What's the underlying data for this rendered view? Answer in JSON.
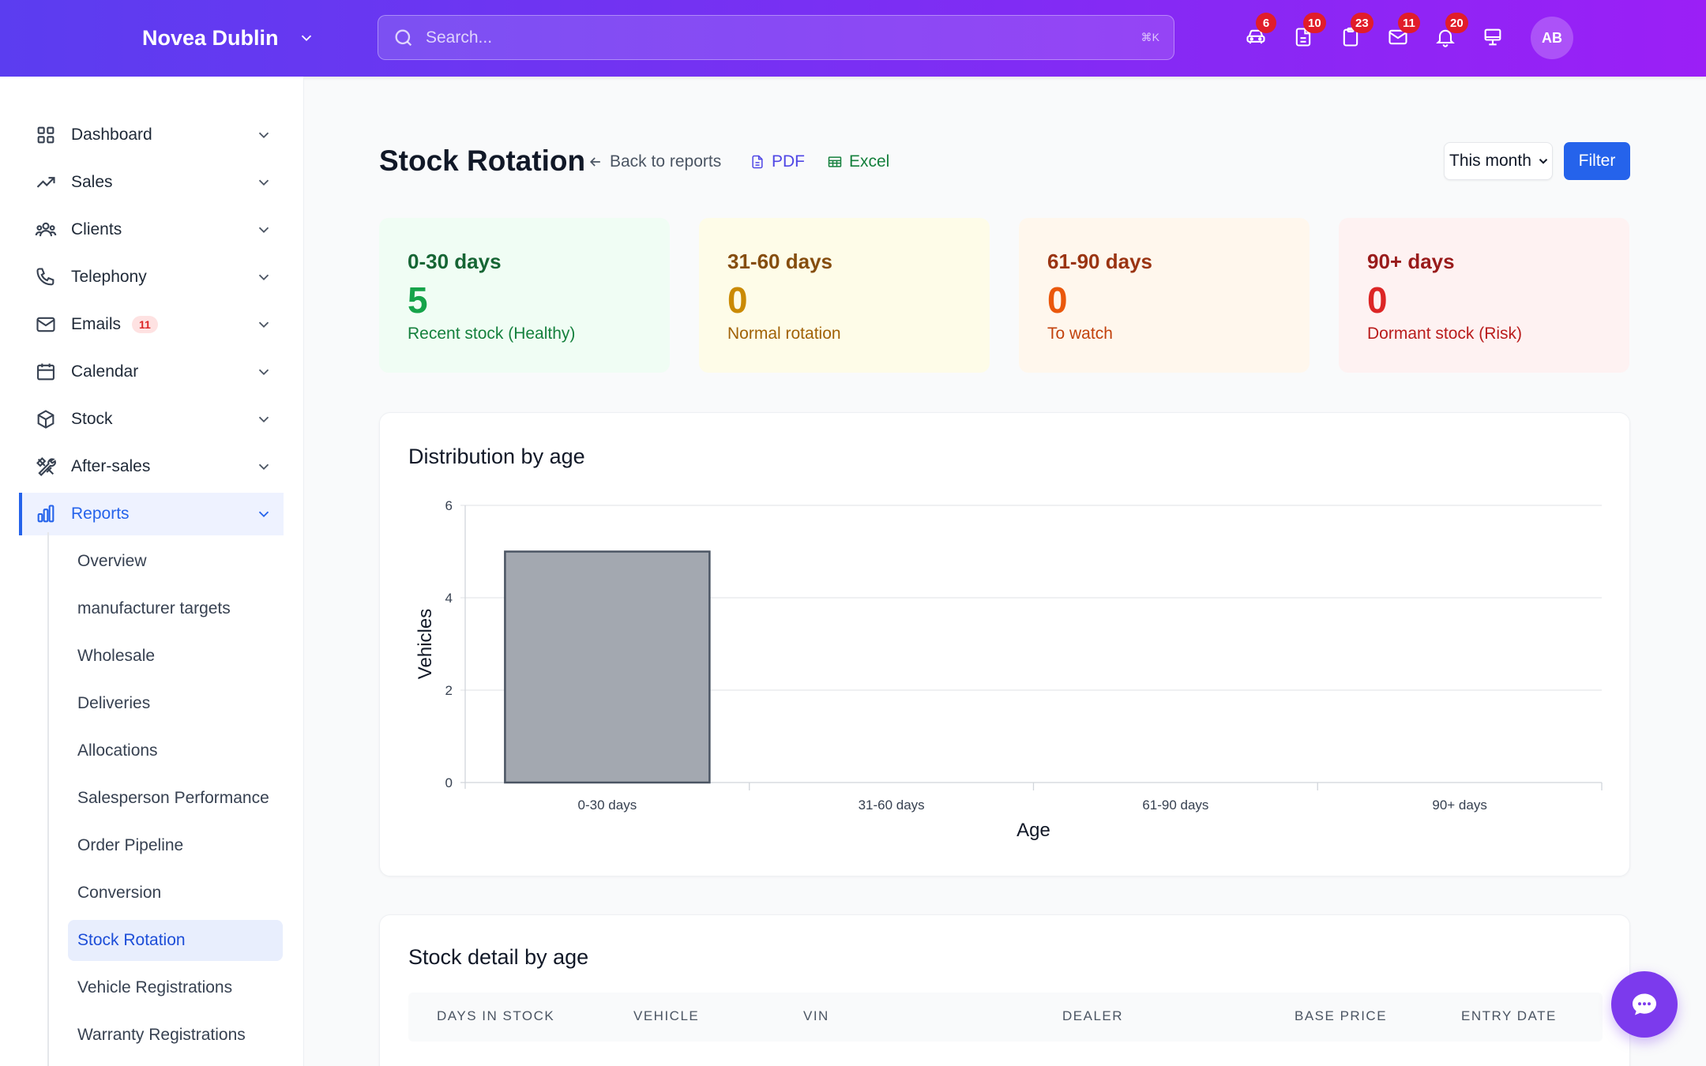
{
  "header": {
    "brand": "Novea Dublin",
    "search_placeholder": "Search...",
    "search_shortcut": "⌘K",
    "icons": [
      {
        "name": "car-icon",
        "badge": "6"
      },
      {
        "name": "document-icon",
        "badge": "10"
      },
      {
        "name": "clipboard-icon",
        "badge": "23"
      },
      {
        "name": "mail-icon",
        "badge": "11"
      },
      {
        "name": "bell-icon",
        "badge": "20"
      },
      {
        "name": "monitor-icon",
        "badge": ""
      }
    ],
    "avatar": "AB"
  },
  "sidebar": {
    "items": [
      {
        "label": "Dashboard",
        "icon": "grid-icon"
      },
      {
        "label": "Sales",
        "icon": "trending-up-icon"
      },
      {
        "label": "Clients",
        "icon": "users-icon"
      },
      {
        "label": "Telephony",
        "icon": "phone-icon"
      },
      {
        "label": "Emails",
        "icon": "mail-icon",
        "badge": "11"
      },
      {
        "label": "Calendar",
        "icon": "calendar-icon"
      },
      {
        "label": "Stock",
        "icon": "box-icon"
      },
      {
        "label": "After-sales",
        "icon": "tools-icon"
      },
      {
        "label": "Reports",
        "icon": "bar-chart-icon",
        "active": true
      }
    ],
    "report_items": [
      "Overview",
      "manufacturer targets",
      "Wholesale",
      "Deliveries",
      "Allocations",
      "Salesperson Performance",
      "Order Pipeline",
      "Conversion",
      "Stock Rotation",
      "Vehicle Registrations",
      "Warranty Registrations"
    ],
    "active_report": "Stock Rotation"
  },
  "page": {
    "title": "Stock Rotation",
    "back_link": "Back to reports",
    "pdf_link": "PDF",
    "excel_link": "Excel",
    "period": "This month",
    "filter_button": "Filter"
  },
  "summary_cards": [
    {
      "label": "0-30 days",
      "value": "5",
      "caption": "Recent stock (Healthy)",
      "bg": "#f0fdf4",
      "label_color": "#166534",
      "value_color": "#16a34a",
      "caption_color": "#15803d"
    },
    {
      "label": "31-60 days",
      "value": "0",
      "caption": "Normal rotation",
      "bg": "#fefce8",
      "label_color": "#854d0e",
      "value_color": "#ca8a04",
      "caption_color": "#a16207"
    },
    {
      "label": "61-90 days",
      "value": "0",
      "caption": "To watch",
      "bg": "#fff7ed",
      "label_color": "#9a3412",
      "value_color": "#ea580c",
      "caption_color": "#c2410c"
    },
    {
      "label": "90+ days",
      "value": "0",
      "caption": "Dormant stock (Risk)",
      "bg": "#fef2f2",
      "label_color": "#991b1b",
      "value_color": "#dc2626",
      "caption_color": "#b91c1c"
    }
  ],
  "distribution": {
    "title": "Distribution by age"
  },
  "chart_data": {
    "type": "bar",
    "title": "",
    "categories": [
      "0-30 days",
      "31-60 days",
      "61-90 days",
      "90+ days"
    ],
    "values": [
      5,
      0,
      0,
      0
    ],
    "xlabel": "Age",
    "ylabel": "Vehicles",
    "ylim": [
      0,
      6
    ],
    "yticks": [
      0,
      2,
      4,
      6
    ],
    "grid": true,
    "bar_color": "#a3a8b0",
    "bar_border": "#4b5563"
  },
  "detail": {
    "title": "Stock detail by age",
    "columns": [
      "DAYS IN STOCK",
      "VEHICLE",
      "VIN",
      "DEALER",
      "BASE PRICE",
      "ENTRY DATE"
    ]
  }
}
